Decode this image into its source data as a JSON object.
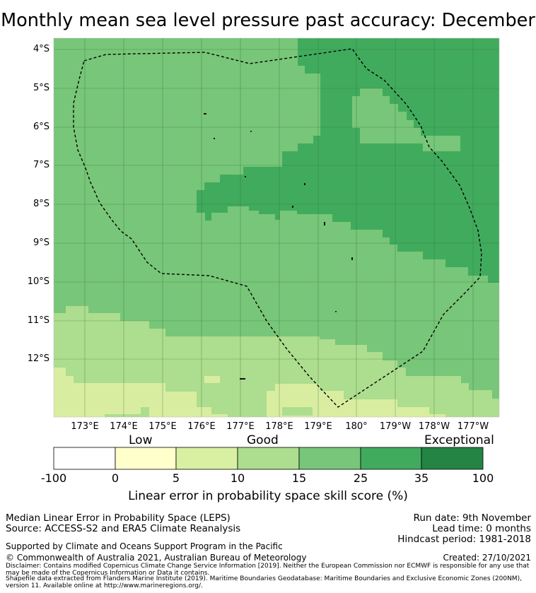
{
  "title": "Monthly mean sea level pressure past accuracy: December",
  "map": {
    "lat_labels": [
      "4°S",
      "5°S",
      "6°S",
      "7°S",
      "8°S",
      "9°S",
      "10°S",
      "11°S",
      "12°S"
    ],
    "lon_labels": [
      "173°E",
      "174°E",
      "175°E",
      "176°E",
      "177°E",
      "178°E",
      "179°E",
      "180°",
      "179°W",
      "178°W",
      "177°W"
    ],
    "category_colors": {
      "light_yellow": "#d9eda0",
      "light_green": "#addd8e",
      "medium_green": "#78c679",
      "green": "#41ab5d",
      "dark_green": "#238443"
    }
  },
  "colorbar": {
    "category_labels": [
      "Low",
      "Good",
      "Exceptional"
    ],
    "ticks": [
      "-100",
      "0",
      "5",
      "10",
      "15",
      "25",
      "35",
      "100"
    ],
    "colors": [
      "#ffffff",
      "#ffffcc",
      "#d9f0a3",
      "#addd8e",
      "#78c679",
      "#41ab5d",
      "#238443"
    ],
    "label": "Linear error in probability space skill score (%)"
  },
  "info": {
    "line1": "Median Linear Error in Probability Space (LEPS)",
    "line2": "Source: ACCESS-S2 and ERA5 Climate Reanalysis",
    "run_date": "Run date: 9th November",
    "lead_time": "Lead time: 0 months",
    "hindcast": "Hindcast period: 1981-2018",
    "support": "Supported by Climate and Oceans Support Program in the Pacific",
    "copyright": "© Commonwealth of Australia 2021, Australian Bureau of Meteorology",
    "created": "Created: 27/10/2021",
    "disclaimer": "Disclaimer: Contains modified Copernicus Climate Change Service Information [2019]. Neither the European Commission nor ECMWF is responsible for any use that may be made of the Copernicus Information or Data it contains.",
    "shapefile": "Shapefile data extracted from Flanders Marine Institute (2019). Maritime Boundaries Geodatabase: Maritime Boundaries and Exclusive Economic Zones (200NM), version 11. Available online at http://www.marineregions.org/."
  }
}
